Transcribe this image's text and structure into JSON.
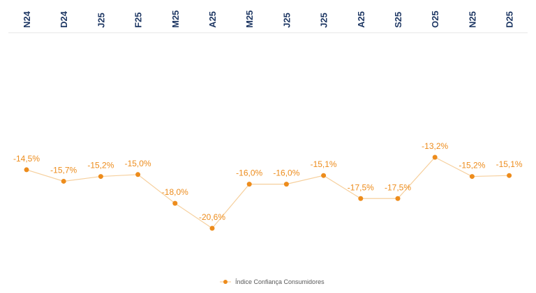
{
  "chart_data": {
    "type": "line",
    "categories": [
      "N24",
      "D24",
      "J25",
      "F25",
      "M25",
      "A25",
      "M25",
      "J25",
      "J25",
      "A25",
      "S25",
      "O25",
      "N25",
      "D25"
    ],
    "series": [
      {
        "name": "Índice Confiança Consumidores",
        "color": "#ed8c1c",
        "values": [
          -14.5,
          -15.7,
          -15.2,
          -15.0,
          -18.0,
          -20.6,
          -16.0,
          -16.0,
          -15.1,
          -17.5,
          -17.5,
          -13.2,
          -15.2,
          -15.1
        ],
        "value_labels": [
          "-14,5%",
          "-15,7%",
          "-15,2%",
          "-15,0%",
          "-18,0%",
          "-20,6%",
          "-16,0%",
          "-16,0%",
          "-15,1%",
          "-17,5%",
          "-17,5%",
          "-13,2%",
          "-15,2%",
          "-15,1%"
        ]
      }
    ]
  }
}
